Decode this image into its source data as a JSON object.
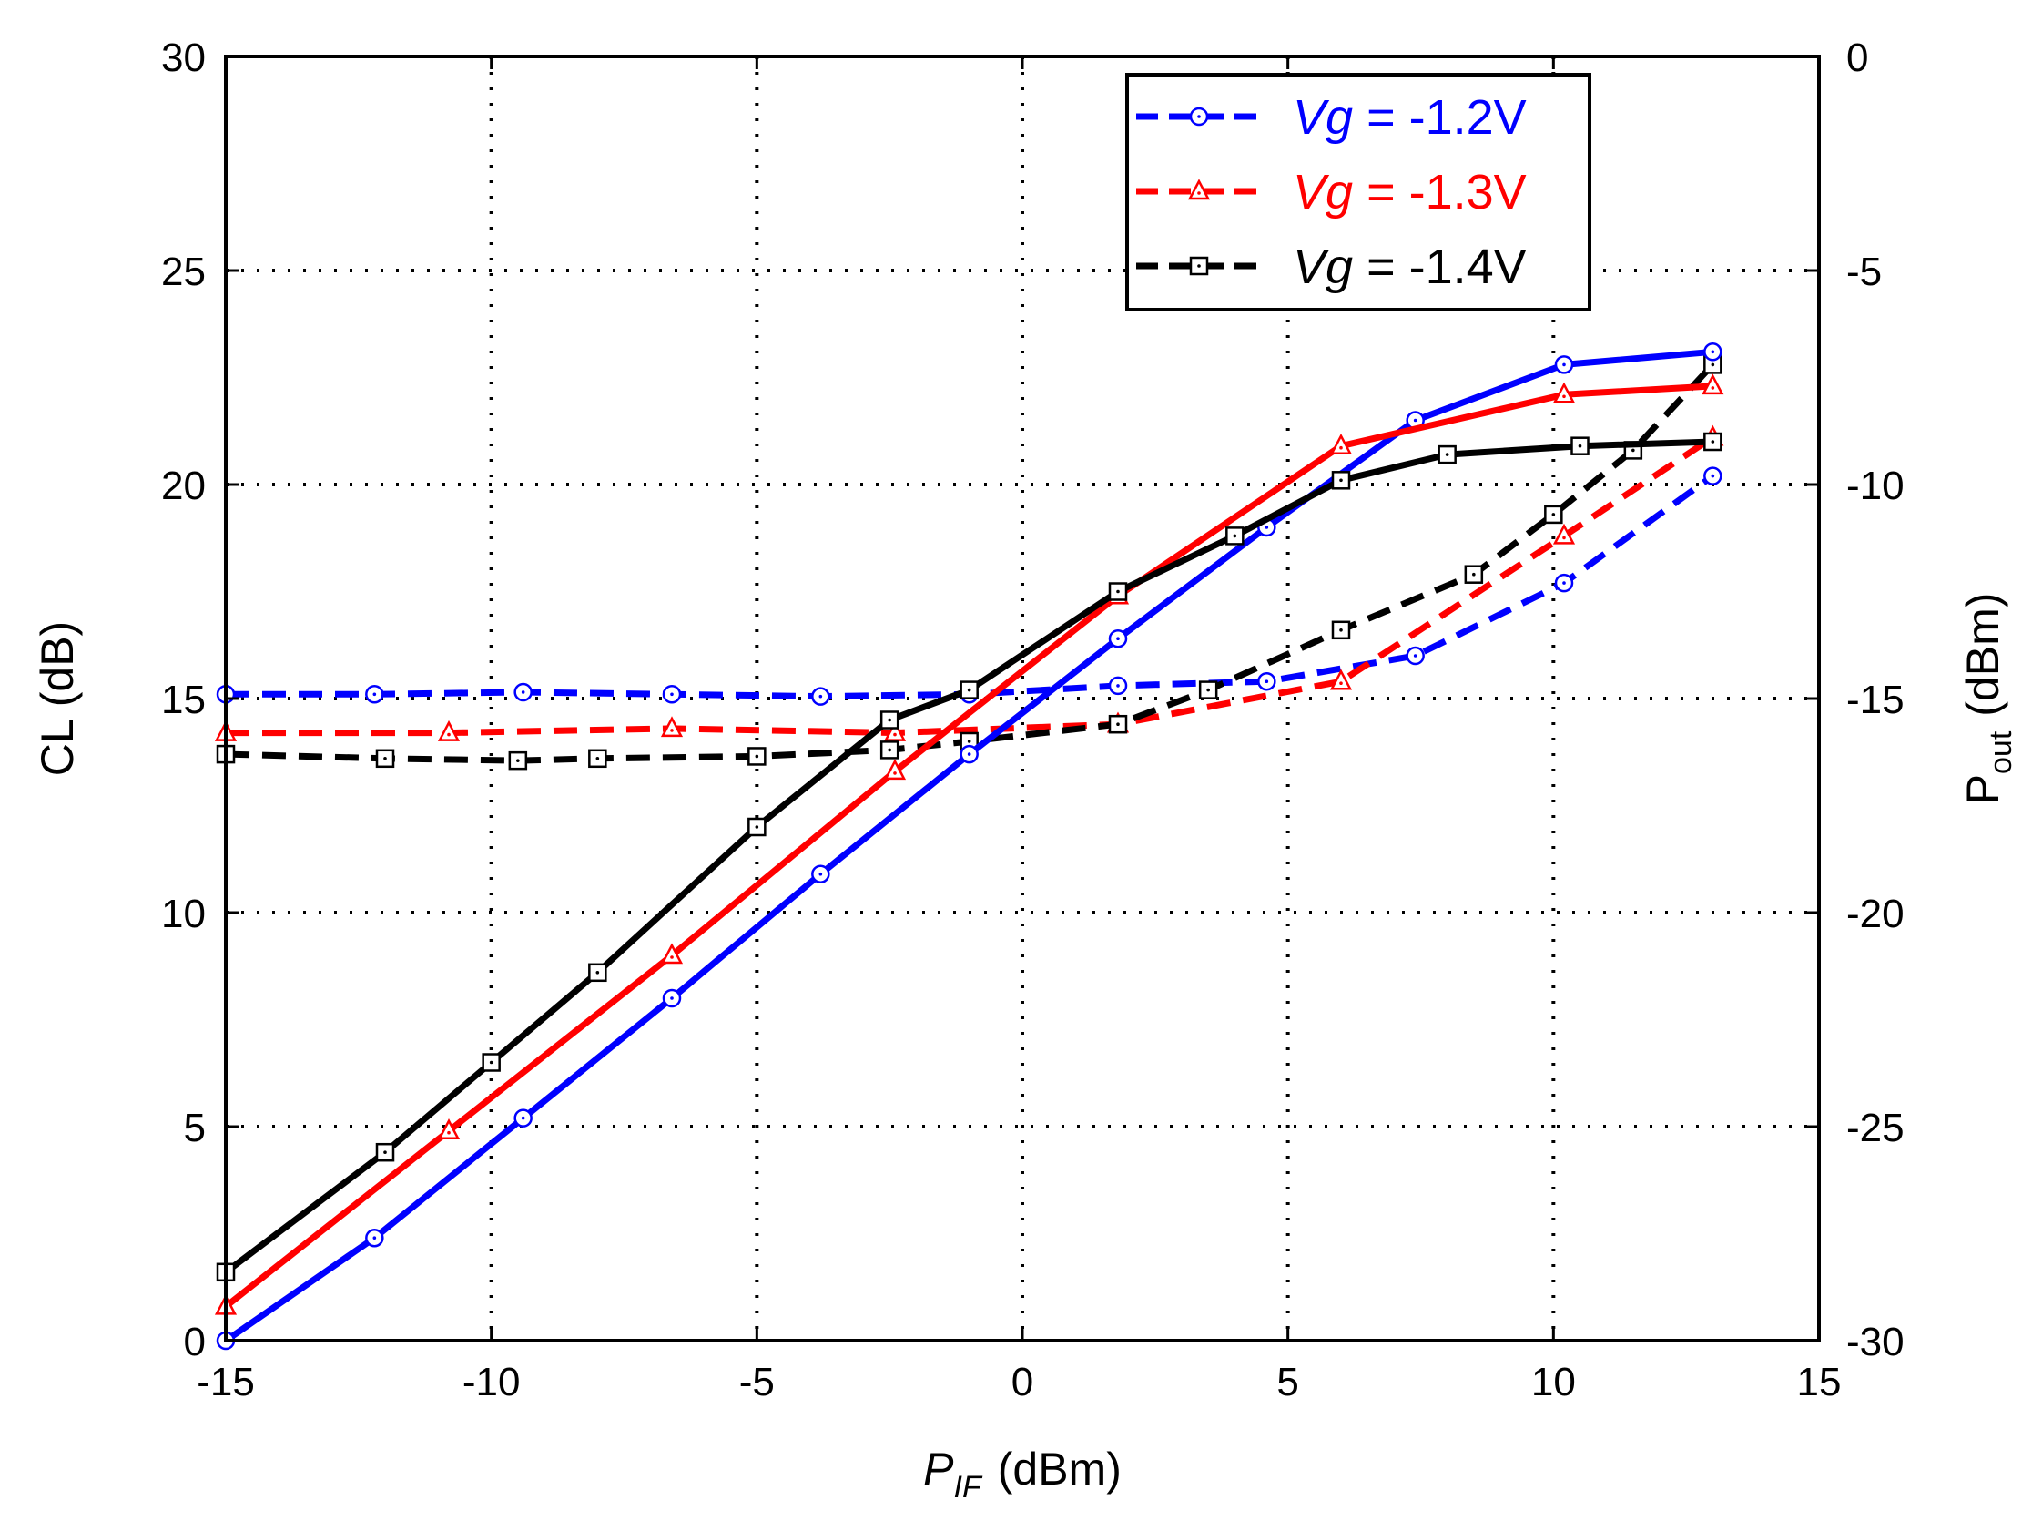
{
  "chart_data": {
    "type": "line",
    "x_axis": {
      "label_main": "P",
      "label_sub": "IF",
      "label_unit": "(dBm)",
      "range": [
        -15,
        15
      ],
      "ticks": [
        -15,
        -10,
        -5,
        0,
        5,
        10,
        15
      ],
      "tick_labels": [
        "-15",
        "-10",
        "-5",
        "0",
        "5",
        "10",
        "15"
      ]
    },
    "y_left": {
      "label": "CL (dB)",
      "range": [
        0,
        30
      ],
      "ticks": [
        0,
        5,
        10,
        15,
        20,
        25,
        30
      ],
      "tick_labels": [
        "0",
        "5",
        "10",
        "15",
        "20",
        "25",
        "30"
      ]
    },
    "y_right": {
      "label_main": "P",
      "label_sub": "out",
      "label_unit": "(dBm)",
      "range": [
        -30,
        0
      ],
      "ticks": [
        -30,
        -25,
        -20,
        -15,
        -10,
        -5,
        0
      ],
      "tick_labels": [
        "-30",
        "-25",
        "-20",
        "-15",
        "-10",
        "-5",
        "0"
      ]
    },
    "grid": "dotted",
    "legend": {
      "placement": "top-right",
      "entries": [
        {
          "var": "Vg",
          "text": " = -1.2V",
          "color": "#0000ff",
          "var_color": "#0000ff",
          "text_color": "#0000ff",
          "marker": "circle"
        },
        {
          "var": "Vg",
          "text": " = -1.3V",
          "color": "#ff0000",
          "var_color": "#ff0000",
          "text_color": "#ff0000",
          "marker": "triangle"
        },
        {
          "var": "Vg",
          "text": " = -1.4V",
          "color": "#000000",
          "var_color": "#000000",
          "text_color": "#000000",
          "marker": "square"
        }
      ]
    },
    "series": [
      {
        "vg": "-1.2V",
        "quantity": "CL",
        "axis": "left",
        "style": "dashed",
        "color": "#0000ff",
        "marker": "circle",
        "x": [
          -15,
          -12.2,
          -9.4,
          -6.6,
          -3.8,
          -1,
          1.8,
          4.6,
          7.4,
          10.2,
          13
        ],
        "y": [
          15.1,
          15.1,
          15.15,
          15.1,
          15.05,
          15.1,
          15.3,
          15.4,
          16.0,
          17.7,
          20.2
        ]
      },
      {
        "vg": "-1.3V",
        "quantity": "CL",
        "axis": "left",
        "style": "dashed",
        "color": "#ff0000",
        "marker": "triangle",
        "x": [
          -15,
          -10.8,
          -6.6,
          -2.4,
          1.8,
          6,
          10.2,
          13
        ],
        "y": [
          14.2,
          14.2,
          14.3,
          14.2,
          14.4,
          15.4,
          18.8,
          21.1
        ]
      },
      {
        "vg": "-1.4V",
        "quantity": "CL",
        "axis": "left",
        "style": "dashed",
        "color": "#000000",
        "marker": "square",
        "x": [
          -15,
          -12,
          -9.5,
          -8,
          -5,
          -2.5,
          -1,
          1.8,
          3.5,
          6,
          8.5,
          10,
          11.5,
          13
        ],
        "y": [
          13.7,
          13.6,
          13.55,
          13.6,
          13.65,
          13.8,
          14.0,
          14.4,
          15.2,
          16.6,
          17.9,
          19.3,
          20.8,
          22.8
        ]
      },
      {
        "vg": "-1.2V",
        "quantity": "Pout",
        "axis": "right",
        "style": "solid",
        "color": "#0000ff",
        "marker": "circle",
        "x": [
          -15,
          -12.2,
          -9.4,
          -6.6,
          -3.8,
          -1,
          1.8,
          4.6,
          7.4,
          10.2,
          13
        ],
        "y": [
          -30,
          -27.6,
          -24.8,
          -22.0,
          -19.1,
          -16.3,
          -13.6,
          -11.0,
          -8.5,
          -7.2,
          -6.9
        ]
      },
      {
        "vg": "-1.3V",
        "quantity": "Pout",
        "axis": "right",
        "style": "solid",
        "color": "#ff0000",
        "marker": "triangle",
        "x": [
          -15,
          -10.8,
          -6.6,
          -2.4,
          1.8,
          6,
          10.2,
          13
        ],
        "y": [
          -29.2,
          -25.1,
          -21.0,
          -16.7,
          -12.6,
          -9.1,
          -7.9,
          -7.7
        ]
      },
      {
        "vg": "-1.4V",
        "quantity": "Pout",
        "axis": "right",
        "style": "solid",
        "color": "#000000",
        "marker": "square",
        "x": [
          -15,
          -12,
          -10,
          -8,
          -5,
          -2.5,
          -1,
          1.8,
          4,
          6,
          8,
          10.5,
          13
        ],
        "y": [
          -28.4,
          -25.6,
          -23.5,
          -21.4,
          -18.0,
          -15.5,
          -14.8,
          -12.5,
          -11.2,
          -9.9,
          -9.3,
          -9.1,
          -9.0
        ]
      }
    ]
  }
}
